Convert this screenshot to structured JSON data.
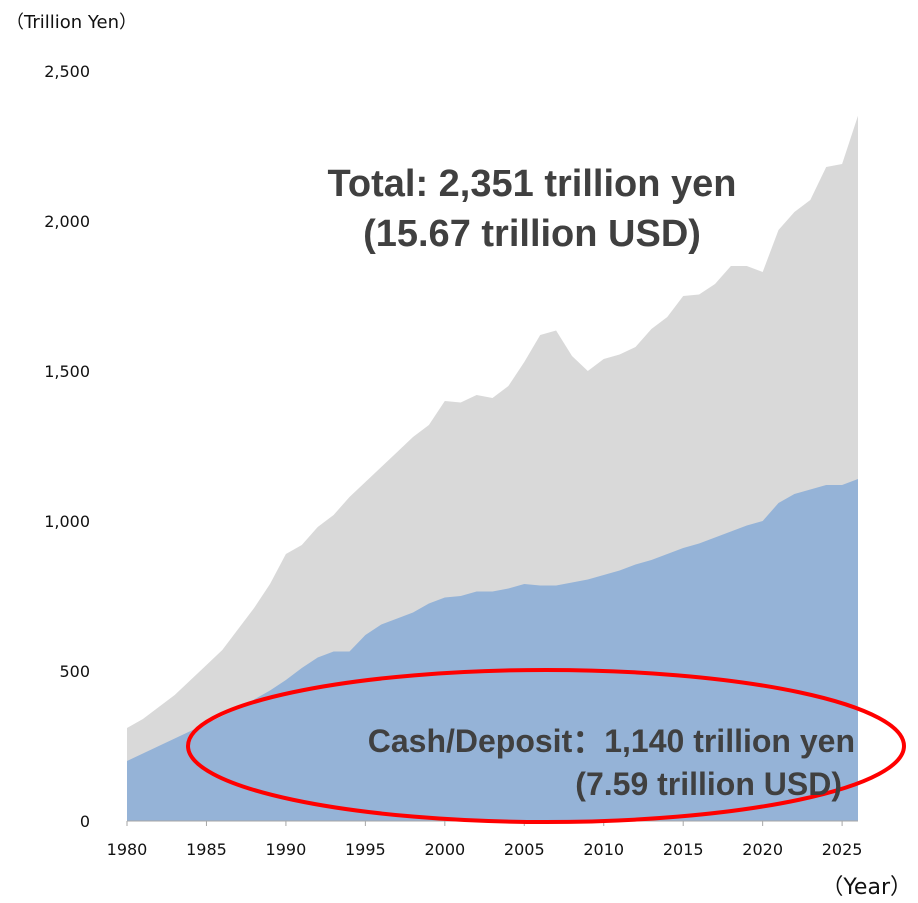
{
  "chart_data": {
    "type": "area",
    "ylabel": "（Trillion Yen）",
    "xlabel": "（Year）",
    "ylim": [
      0,
      2500
    ],
    "xlim": [
      1980,
      2026
    ],
    "yticks": [
      0,
      500,
      1000,
      1500,
      2000,
      2500
    ],
    "ytick_labels": [
      "0",
      "500",
      "1,000",
      "1,500",
      "2,000",
      "2,500"
    ],
    "xticks": [
      1980,
      1985,
      1990,
      1995,
      2000,
      2005,
      2010,
      2015,
      2020,
      2025
    ],
    "xtick_labels": [
      "1980",
      "1985",
      "1990",
      "1995",
      "2000",
      "2005",
      "2010",
      "2015",
      "2020",
      "2025"
    ],
    "grid": false,
    "colors": {
      "total": "#d9d9d9",
      "cash": "#95b3d7",
      "highlight": "#ff0000"
    },
    "x": [
      1980,
      1981,
      1982,
      1983,
      1984,
      1985,
      1986,
      1987,
      1988,
      1989,
      1990,
      1991,
      1992,
      1993,
      1994,
      1995,
      1996,
      1997,
      1998,
      1999,
      2000,
      2001,
      2002,
      2003,
      2004,
      2005,
      2006,
      2007,
      2008,
      2009,
      2010,
      2011,
      2012,
      2013,
      2014,
      2015,
      2016,
      2017,
      2018,
      2019,
      2020,
      2021,
      2022,
      2023,
      2024,
      2025,
      2026
    ],
    "series": [
      {
        "values": [
          310,
          340,
          380,
          420,
          470,
          520,
          570,
          640,
          710,
          790,
          890,
          920,
          980,
          1020,
          1080,
          1130,
          1180,
          1230,
          1280,
          1320,
          1400,
          1395,
          1420,
          1410,
          1450,
          1530,
          1620,
          1635,
          1550,
          1500,
          1540,
          1555,
          1580,
          1640,
          1680,
          1750,
          1755,
          1790,
          1850,
          1850,
          1830,
          1970,
          2030,
          2070,
          2180,
          2190,
          2351
        ]
      },
      {
        "values": [
          200,
          225,
          250,
          275,
          300,
          325,
          350,
          375,
          405,
          435,
          470,
          510,
          545,
          565,
          565,
          620,
          655,
          675,
          695,
          725,
          745,
          750,
          765,
          765,
          775,
          790,
          785,
          785,
          795,
          805,
          820,
          835,
          855,
          870,
          890,
          910,
          925,
          945,
          965,
          985,
          1000,
          1060,
          1090,
          1105,
          1120,
          1120,
          1140
        ]
      }
    ],
    "annotations": {
      "total_line1": "Total: 2,351 trillion yen",
      "total_line2": "(15.67 trillion USD)",
      "cash_line1": "Cash/Deposit：1,140 trillion yen",
      "cash_line2": "(7.59 trillion USD)"
    }
  }
}
